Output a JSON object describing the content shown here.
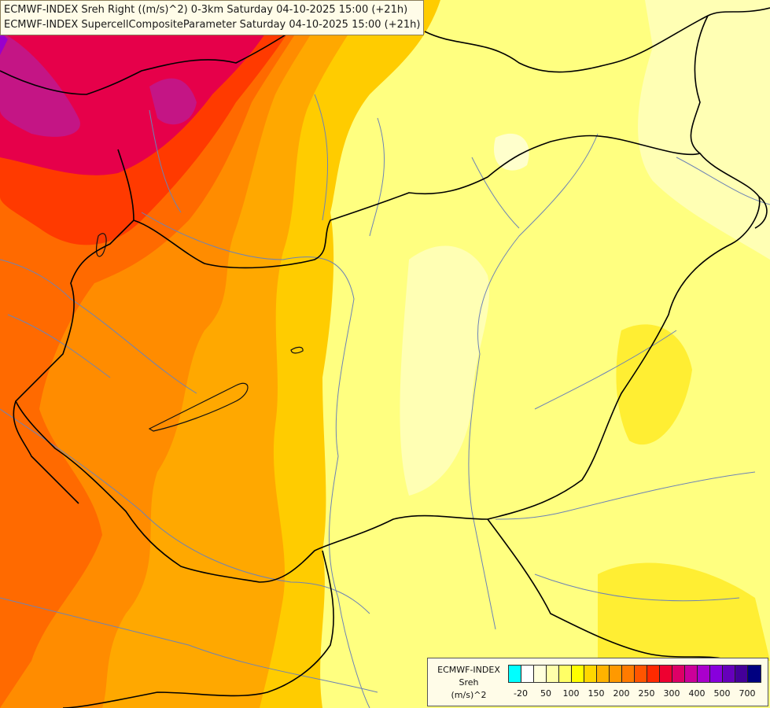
{
  "title": {
    "line1": "ECMWF-INDEX Sreh Right ((m/s)^2) 0-3km Saturday 04-10-2025 15:00 (+21h)",
    "line2": "ECMWF-INDEX SupercellCompositeParameter Saturday 04-10-2025 15:00 (+21h)"
  },
  "legend": {
    "model": "ECMWF-INDEX",
    "variable": "Sreh",
    "unit": "(m/s)^2",
    "colors": [
      "#00ffff",
      "#ffffff",
      "#ffffdd",
      "#ffffaa",
      "#ffff66",
      "#ffff00",
      "#ffd700",
      "#ffb300",
      "#ff9900",
      "#ff7b00",
      "#ff5500",
      "#ff2a00",
      "#ee0030",
      "#dd0066",
      "#cc0099",
      "#aa00cc",
      "#8800dd",
      "#6600bb",
      "#440099",
      "#000080"
    ],
    "tick_labels": [
      "-20",
      "50",
      "100",
      "150",
      "200",
      "250",
      "300",
      "400",
      "500",
      "700"
    ]
  }
}
